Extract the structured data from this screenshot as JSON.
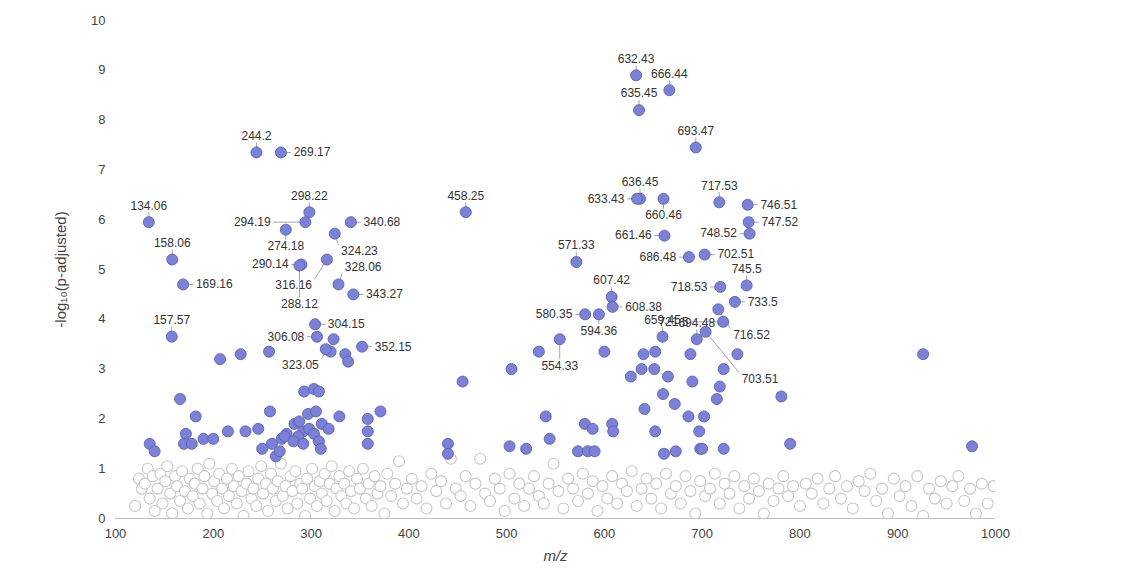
{
  "chart_data": {
    "type": "scatter",
    "x_label": "m/z",
    "y_label": "-log₁₀(p-adjusted)",
    "xlim": [
      100,
      1000
    ],
    "xticks": [
      100,
      200,
      300,
      400,
      500,
      600,
      700,
      800,
      900,
      1000
    ],
    "ylim": [
      0,
      10
    ],
    "yticks": [
      0,
      1,
      2,
      3,
      4,
      5,
      6,
      7,
      8,
      9,
      10
    ],
    "grid": false,
    "series": [
      {
        "color": "#c8c8c8",
        "marker": "open",
        "x": [
          120,
          124,
          127,
          130,
          133,
          135,
          138,
          140,
          143,
          146,
          148,
          151,
          153,
          156,
          158,
          161,
          163,
          166,
          168,
          171,
          174,
          176,
          179,
          181,
          184,
          186,
          189,
          191,
          194,
          196,
          199,
          201,
          204,
          206,
          209,
          211,
          214,
          216,
          219,
          221,
          224,
          226,
          229,
          231,
          234,
          236,
          239,
          241,
          244,
          246,
          249,
          251,
          254,
          256,
          259,
          261,
          264,
          266,
          269,
          271,
          274,
          276,
          279,
          281,
          284,
          286,
          289,
          291,
          294,
          296,
          299,
          301,
          304,
          306,
          309,
          311,
          314,
          316,
          319,
          321,
          324,
          326,
          329,
          331,
          334,
          336,
          339,
          341,
          344,
          347,
          350,
          353,
          356,
          359,
          362,
          365,
          368,
          371,
          375,
          378,
          382,
          386,
          390,
          394,
          398,
          403,
          408,
          413,
          418,
          423,
          428,
          433,
          438,
          443,
          448,
          453,
          458,
          463,
          468,
          473,
          478,
          483,
          488,
          493,
          498,
          503,
          508,
          513,
          518,
          523,
          528,
          533,
          538,
          543,
          548,
          553,
          558,
          563,
          568,
          573,
          578,
          583,
          588,
          593,
          598,
          603,
          608,
          613,
          618,
          623,
          628,
          633,
          638,
          643,
          648,
          653,
          658,
          663,
          668,
          673,
          678,
          683,
          688,
          693,
          698,
          703,
          708,
          713,
          718,
          723,
          728,
          733,
          738,
          743,
          748,
          753,
          758,
          763,
          768,
          773,
          778,
          783,
          788,
          793,
          800,
          806,
          812,
          818,
          824,
          830,
          836,
          842,
          848,
          854,
          860,
          866,
          872,
          878,
          884,
          890,
          896,
          902,
          908,
          914,
          920,
          926,
          932,
          938,
          944,
          950,
          956,
          962,
          968,
          974,
          980,
          986,
          992,
          998
        ],
        "values": [
          0.25,
          0.8,
          0.6,
          0.7,
          1.0,
          0.4,
          0.85,
          0.15,
          0.6,
          0.9,
          0.3,
          0.75,
          1.05,
          0.5,
          0.1,
          0.85,
          0.65,
          0.35,
          0.95,
          0.55,
          0.2,
          0.8,
          0.45,
          0.7,
          1.0,
          0.3,
          0.6,
          0.85,
          0.1,
          1.1,
          0.5,
          0.75,
          0.35,
          0.9,
          0.6,
          0.2,
          0.8,
          0.45,
          1.0,
          0.65,
          0.3,
          0.85,
          0.55,
          0.05,
          0.7,
          0.95,
          0.4,
          0.6,
          0.25,
          0.8,
          1.05,
          0.5,
          0.7,
          0.15,
          0.9,
          0.6,
          0.35,
          0.75,
          1.1,
          0.45,
          0.65,
          0.2,
          0.85,
          0.55,
          0.95,
          0.3,
          0.7,
          0.6,
          0.05,
          0.8,
          0.4,
          1.0,
          0.65,
          0.25,
          0.75,
          0.5,
          0.9,
          0.35,
          0.7,
          1.05,
          0.15,
          0.6,
          0.85,
          0.45,
          0.7,
          0.3,
          0.95,
          0.55,
          0.2,
          0.8,
          0.6,
          1.0,
          0.4,
          0.7,
          0.25,
          0.85,
          0.5,
          0.65,
          0.1,
          0.9,
          0.45,
          0.7,
          1.15,
          0.3,
          0.6,
          0.8,
          0.4,
          0.65,
          0.2,
          0.9,
          0.55,
          0.75,
          0.3,
          1.2,
          0.6,
          0.45,
          0.85,
          0.25,
          0.7,
          1.2,
          0.5,
          0.35,
          0.8,
          0.6,
          0.15,
          0.9,
          0.4,
          0.7,
          0.25,
          0.6,
          0.85,
          0.45,
          0.3,
          0.7,
          1.1,
          0.55,
          0.2,
          0.8,
          0.6,
          0.35,
          0.9,
          0.5,
          0.75,
          0.15,
          0.65,
          0.4,
          0.85,
          0.3,
          0.7,
          0.55,
          0.95,
          0.25,
          0.6,
          0.8,
          0.4,
          0.7,
          0.2,
          0.9,
          0.5,
          0.65,
          0.3,
          0.85,
          0.55,
          0.1,
          0.75,
          0.45,
          0.6,
          0.9,
          0.3,
          0.7,
          0.5,
          0.85,
          0.2,
          0.65,
          0.4,
          0.8,
          0.55,
          0.1,
          0.7,
          0.35,
          0.6,
          0.85,
          0.45,
          0.65,
          0.25,
          0.7,
          0.5,
          0.8,
          0.3,
          0.6,
          0.85,
          0.4,
          0.65,
          0.2,
          0.75,
          0.55,
          0.9,
          0.35,
          0.6,
          0.1,
          0.8,
          0.45,
          0.65,
          0.25,
          0.85,
          0.05,
          0.6,
          0.4,
          0.75,
          0.3,
          0.65,
          0.85,
          0.35,
          0.6,
          0.1,
          0.7,
          0.3,
          0.65
        ]
      },
      {
        "color": "#7b82d6",
        "marker": "filled",
        "x": [
          632.43,
          666.44,
          635.45,
          693.47,
          244.2,
          269.17,
          298.22,
          294.19,
          274.18,
          458.25,
          636.45,
          633.43,
          660.46,
          717.53,
          746.51,
          747.52,
          748.52,
          661.46,
          134.06,
          158.06,
          169.16,
          157.57,
          340.68,
          324.23,
          316.16,
          290.14,
          288.12,
          328.06,
          343.27,
          304.15,
          306.08,
          323.05,
          352.15,
          571.33,
          594.36,
          580.35,
          607.42,
          608.38,
          554.33,
          702.51,
          686.48,
          718.53,
          745.5,
          716.52,
          733.5,
          721.5,
          659.45,
          694.48,
          703.51,
          207,
          228,
          257,
          320,
          315,
          335,
          338,
          600,
          533,
          640,
          652,
          688,
          926,
          736,
          166,
          293,
          303,
          308,
          455,
          505,
          627,
          638,
          651,
          665,
          672,
          690,
          718,
          722,
          715,
          781,
          660,
          182,
          258,
          283,
          297,
          305,
          311,
          292,
          298,
          303,
          270,
          275,
          287,
          288,
          318,
          329,
          358,
          358,
          371,
          190,
          200,
          215,
          233,
          246,
          260,
          273,
          282,
          292,
          308,
          310,
          358,
          264,
          268,
          250,
          540,
          544,
          580,
          588,
          608,
          609,
          641,
          652,
          673,
          686,
          697,
          702,
          722,
          698,
          790,
          976,
          172,
          170,
          178,
          135,
          140,
          440,
          440,
          503,
          520,
          573,
          583,
          590,
          661,
          700
        ],
        "values": [
          8.9,
          8.6,
          8.2,
          7.45,
          7.35,
          7.35,
          6.15,
          5.95,
          5.8,
          6.15,
          6.42,
          6.42,
          6.42,
          6.35,
          6.3,
          5.95,
          5.72,
          5.68,
          5.95,
          5.2,
          4.7,
          3.65,
          5.95,
          5.72,
          5.2,
          5.1,
          5.08,
          4.7,
          4.5,
          3.9,
          3.65,
          3.6,
          3.45,
          5.15,
          4.1,
          4.1,
          4.45,
          4.25,
          3.6,
          5.3,
          5.25,
          4.65,
          4.68,
          4.2,
          4.35,
          3.95,
          3.65,
          3.6,
          3.75,
          3.2,
          3.3,
          3.35,
          3.35,
          3.4,
          3.3,
          3.15,
          3.35,
          3.35,
          3.3,
          3.35,
          3.3,
          3.3,
          3.3,
          2.4,
          2.55,
          2.6,
          2.55,
          2.75,
          3.0,
          2.85,
          3.0,
          3.0,
          2.85,
          2.3,
          2.75,
          2.65,
          3.0,
          2.4,
          2.45,
          2.5,
          2.05,
          2.15,
          1.9,
          2.1,
          2.15,
          1.9,
          1.75,
          1.8,
          1.7,
          1.6,
          1.7,
          1.65,
          1.95,
          1.8,
          2.05,
          2.0,
          1.75,
          2.15,
          1.6,
          1.6,
          1.75,
          1.75,
          1.8,
          1.5,
          1.65,
          1.55,
          1.5,
          1.55,
          1.4,
          1.5,
          1.25,
          1.35,
          1.4,
          2.05,
          1.6,
          1.9,
          1.8,
          1.9,
          1.75,
          2.2,
          1.75,
          1.35,
          2.05,
          1.75,
          2.05,
          1.4,
          1.4,
          1.5,
          1.45,
          1.7,
          1.5,
          1.5,
          1.5,
          1.35,
          1.5,
          1.3,
          1.45,
          1.4,
          1.35,
          1.35,
          1.35,
          1.3,
          1.4
        ]
      }
    ],
    "annotations": [
      {
        "text": "632.43",
        "x": 632.43,
        "y": 8.9
      },
      {
        "text": "666.44",
        "x": 666.44,
        "y": 8.6
      },
      {
        "text": "635.45",
        "x": 635.45,
        "y": 8.2
      },
      {
        "text": "693.47",
        "x": 693.47,
        "y": 7.45
      },
      {
        "text": "244.2",
        "x": 244.2,
        "y": 7.35
      },
      {
        "text": "269.17",
        "x": 269.17,
        "y": 7.35
      },
      {
        "text": "298.22",
        "x": 298.22,
        "y": 6.15
      },
      {
        "text": "294.19",
        "x": 294.19,
        "y": 5.95
      },
      {
        "text": "274.18",
        "x": 274.18,
        "y": 5.8
      },
      {
        "text": "458.25",
        "x": 458.25,
        "y": 6.15
      },
      {
        "text": "636.45",
        "x": 636.45,
        "y": 6.42
      },
      {
        "text": "633.43",
        "x": 633.43,
        "y": 6.42
      },
      {
        "text": "660.46",
        "x": 660.46,
        "y": 6.42
      },
      {
        "text": "717.53",
        "x": 717.53,
        "y": 6.35
      },
      {
        "text": "746.51",
        "x": 746.51,
        "y": 6.3
      },
      {
        "text": "747.52",
        "x": 747.52,
        "y": 5.95
      },
      {
        "text": "748.52",
        "x": 748.52,
        "y": 5.72
      },
      {
        "text": "661.46",
        "x": 661.46,
        "y": 5.68
      },
      {
        "text": "134.06",
        "x": 134.06,
        "y": 5.95
      },
      {
        "text": "158.06",
        "x": 158.06,
        "y": 5.2
      },
      {
        "text": "169.16",
        "x": 169.16,
        "y": 4.7
      },
      {
        "text": "157.57",
        "x": 157.57,
        "y": 3.65
      },
      {
        "text": "340.68",
        "x": 340.68,
        "y": 5.95
      },
      {
        "text": "324.23",
        "x": 324.23,
        "y": 5.72
      },
      {
        "text": "316.16",
        "x": 316.16,
        "y": 5.2
      },
      {
        "text": "290.14",
        "x": 290.14,
        "y": 5.1
      },
      {
        "text": "288.12",
        "x": 288.12,
        "y": 5.08
      },
      {
        "text": "328.06",
        "x": 328.06,
        "y": 4.7
      },
      {
        "text": "343.27",
        "x": 343.27,
        "y": 4.5
      },
      {
        "text": "304.15",
        "x": 304.15,
        "y": 3.9
      },
      {
        "text": "306.08",
        "x": 306.08,
        "y": 3.65
      },
      {
        "text": "323.05",
        "x": 323.05,
        "y": 3.6
      },
      {
        "text": "352.15",
        "x": 352.15,
        "y": 3.45
      },
      {
        "text": "571.33",
        "x": 571.33,
        "y": 5.15
      },
      {
        "text": "594.36",
        "x": 594.36,
        "y": 4.1
      },
      {
        "text": "580.35",
        "x": 580.35,
        "y": 4.1
      },
      {
        "text": "607.42",
        "x": 607.42,
        "y": 4.45
      },
      {
        "text": "608.38",
        "x": 608.38,
        "y": 4.25
      },
      {
        "text": "554.33",
        "x": 554.33,
        "y": 3.6
      },
      {
        "text": "702.51",
        "x": 702.51,
        "y": 5.3
      },
      {
        "text": "686.48",
        "x": 686.48,
        "y": 5.25
      },
      {
        "text": "718.53",
        "x": 718.53,
        "y": 4.65
      },
      {
        "text": "745.5",
        "x": 745.5,
        "y": 4.68
      },
      {
        "text": "716.52",
        "x": 716.52,
        "y": 4.2
      },
      {
        "text": "733.5",
        "x": 733.5,
        "y": 4.35
      },
      {
        "text": "721.5",
        "x": 721.5,
        "y": 3.95
      },
      {
        "text": "659.45",
        "x": 659.45,
        "y": 3.65
      },
      {
        "text": "694.48",
        "x": 694.48,
        "y": 3.6
      },
      {
        "text": "703.51",
        "x": 703.51,
        "y": 3.75
      }
    ]
  }
}
